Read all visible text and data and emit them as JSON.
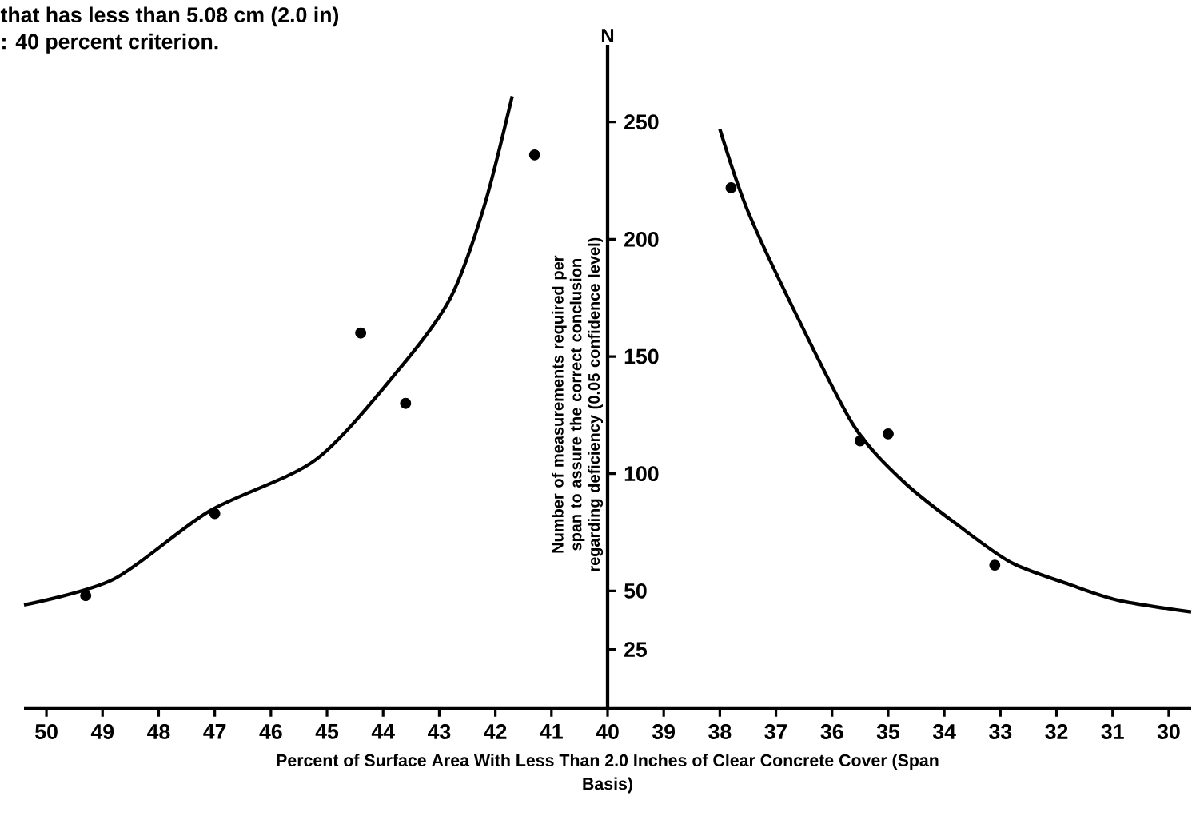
{
  "chart_data": {
    "type": "scatter",
    "title": "that has less than 5.08 cm (2.0 in)",
    "subtitle": ": 40 percent criterion.",
    "xlabel": "Percent of Surface Area With Less Than 2.0 Inches of Clear Concrete Cover (Span Basis)",
    "ylabel": "N",
    "annotations": [
      "Number of measurements required per span to assure the correct conclusion regarding deficiency (0.05 confidence level)"
    ],
    "xlim": [
      50.4,
      29.6
    ],
    "ylim": [
      0,
      283
    ],
    "xticks": [
      50,
      49,
      48,
      47,
      46,
      45,
      44,
      43,
      42,
      41,
      40,
      39,
      38,
      37,
      36,
      35,
      34,
      33,
      32,
      31,
      30
    ],
    "yticks": [
      25,
      50,
      100,
      150,
      200,
      250
    ],
    "grid": false,
    "marker": "circle",
    "series": [
      {
        "color": "#000000",
        "x": [
          49.3,
          47.0,
          44.4,
          43.6,
          41.3
        ],
        "values": [
          48,
          83,
          160,
          130,
          236
        ]
      },
      {
        "color": "#000000",
        "x": [
          37.8,
          35.5,
          35.0,
          33.1
        ],
        "values": [
          222,
          114,
          117,
          61
        ]
      },
      {
        "type": "line",
        "color": "#000000",
        "marker": "none",
        "x": [
          50.4,
          48.8,
          47.1,
          45.2,
          43.7,
          42.8,
          42.2,
          41.7
        ],
        "values": [
          44,
          55,
          84,
          106,
          145,
          175,
          214,
          261
        ]
      },
      {
        "type": "line",
        "color": "#000000",
        "marker": "none",
        "x": [
          38.0,
          37.5,
          36.6,
          35.6,
          34.7,
          33.7,
          32.8,
          31.8,
          30.9,
          29.6
        ],
        "values": [
          247,
          212,
          166,
          120,
          96,
          77,
          62,
          53,
          46,
          41
        ]
      }
    ]
  }
}
